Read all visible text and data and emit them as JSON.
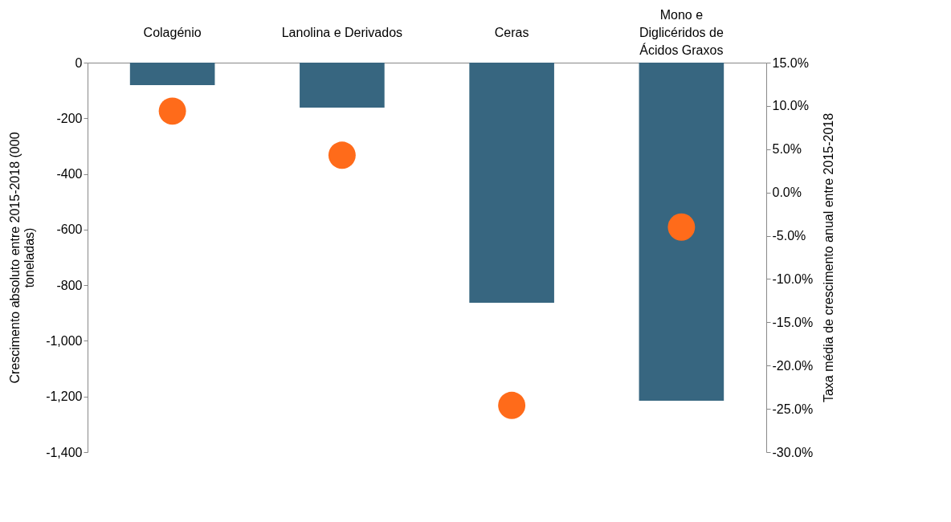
{
  "chart_data": {
    "type": "bar",
    "categories": [
      "Colagénio",
      "Lanolina e Derivados",
      "Ceras",
      "Mono e\nDiglicéridos de\nÁcidos Graxos"
    ],
    "ylabel": "Crescimento  absoluto entre  2015-2018 (000\ntoneladas)",
    "y2label": "Taxa média de crescimento anual entre 2015-2018",
    "series": [
      {
        "color": "#376680",
        "values": [
          -81,
          -162,
          -863,
          -1215
        ]
      },
      {
        "type": "scatter",
        "axis": "y2",
        "color": "#ff6b1a",
        "values": [
          9.4,
          4.3,
          -24.6,
          -4.0
        ]
      }
    ],
    "ylim": [
      -1400,
      0
    ],
    "yticks": [
      {
        "value": 0,
        "label": "0"
      },
      {
        "value": -200,
        "label": "-200"
      },
      {
        "value": -400,
        "label": "-400"
      },
      {
        "value": -600,
        "label": "-600"
      },
      {
        "value": -800,
        "label": "-800"
      },
      {
        "value": -1000,
        "label": "-1,000"
      },
      {
        "value": -1200,
        "label": "-1,200"
      },
      {
        "value": -1400,
        "label": "-1,400"
      }
    ],
    "y2lim": [
      -30,
      15
    ],
    "y2ticks": [
      {
        "value": 15,
        "label": "15.0%"
      },
      {
        "value": 10,
        "label": "10.0%"
      },
      {
        "value": 5,
        "label": "5.0%"
      },
      {
        "value": 0,
        "label": "0.0%"
      },
      {
        "value": -5,
        "label": "-5.0%"
      },
      {
        "value": -10,
        "label": "-10.0%"
      },
      {
        "value": -15,
        "label": "-15.0%"
      },
      {
        "value": -20,
        "label": "-20.0%"
      },
      {
        "value": -25,
        "label": "-25.0%"
      },
      {
        "value": -30,
        "label": "-30.0%"
      }
    ],
    "marker": "circle",
    "grid": false
  }
}
